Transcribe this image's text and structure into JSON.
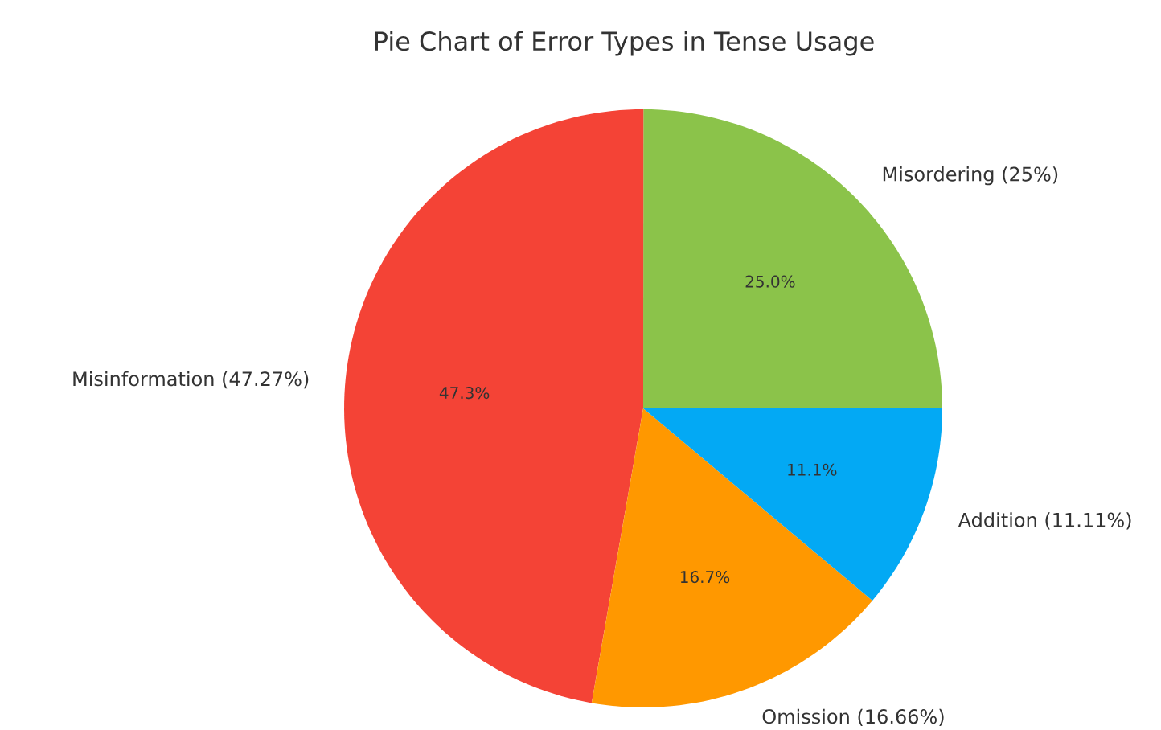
{
  "chart_data": {
    "type": "pie",
    "title": "Pie Chart of Error Types in Tense Usage",
    "categories": [
      "Misordering (25%)",
      "Misinformation (47.27%)",
      "Omission (16.66%)",
      "Addition (11.11%)"
    ],
    "values": [
      25,
      47.27,
      16.66,
      11.11
    ],
    "colors": [
      "#8bc34a",
      "#f44336",
      "#ff9800",
      "#03a9f4"
    ],
    "value_labels": [
      "25.0%",
      "47.3%",
      "16.7%",
      "11.1%"
    ]
  }
}
